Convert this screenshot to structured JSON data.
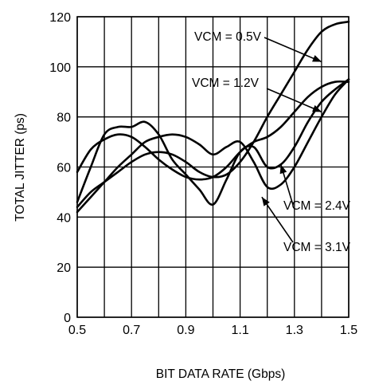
{
  "chart_data": {
    "type": "line",
    "title": "",
    "xlabel": "BIT DATA RATE (Gbps)",
    "ylabel": "TOTAL JITTER (ps)",
    "xlim": [
      0.5,
      1.5
    ],
    "ylim": [
      0,
      120
    ],
    "x_ticks": [
      0.5,
      0.7,
      0.9,
      1.1,
      1.3,
      1.5
    ],
    "x_tick_labels": [
      "0.5",
      "0.7",
      "0.9",
      "1.1",
      "1.3",
      "1.5"
    ],
    "y_ticks": [
      0,
      20,
      40,
      60,
      80,
      100,
      120
    ],
    "y_tick_labels": [
      "0",
      "20",
      "40",
      "60",
      "80",
      "100",
      "120"
    ],
    "x_grid": [
      0.5,
      0.6,
      0.7,
      0.8,
      0.9,
      1.0,
      1.1,
      1.2,
      1.3,
      1.4,
      1.5
    ],
    "y_grid": [
      0,
      20,
      40,
      60,
      80,
      100,
      120
    ],
    "grid": true,
    "series": [
      {
        "name": "VCM = 0.5V",
        "x": [
          0.5,
          0.55,
          0.6,
          0.65,
          0.7,
          0.75,
          0.8,
          0.85,
          0.9,
          0.95,
          1.0,
          1.05,
          1.1,
          1.15,
          1.2,
          1.25,
          1.3,
          1.35,
          1.4,
          1.45,
          1.5
        ],
        "y": [
          44,
          50,
          54,
          58,
          62,
          65,
          66,
          65,
          62,
          58,
          56,
          57,
          62,
          70,
          80,
          89,
          98,
          107,
          114,
          117,
          118
        ]
      },
      {
        "name": "VCM = 1.2V",
        "x": [
          0.5,
          0.55,
          0.6,
          0.65,
          0.7,
          0.75,
          0.8,
          0.85,
          0.9,
          0.95,
          1.0,
          1.05,
          1.1,
          1.15,
          1.2,
          1.25,
          1.3,
          1.35,
          1.4,
          1.45,
          1.5
        ],
        "y": [
          58,
          67,
          71,
          73,
          72,
          68,
          63,
          59,
          56,
          55,
          56,
          60,
          66,
          70,
          72,
          76,
          82,
          88,
          92,
          94,
          94
        ]
      },
      {
        "name": "VCM = 2.4V",
        "x": [
          0.5,
          0.55,
          0.6,
          0.65,
          0.7,
          0.75,
          0.8,
          0.85,
          0.9,
          0.95,
          1.0,
          1.05,
          1.1,
          1.15,
          1.2,
          1.25,
          1.3,
          1.35,
          1.4,
          1.45,
          1.5
        ],
        "y": [
          46,
          60,
          73,
          76,
          76,
          78,
          73,
          63,
          57,
          51,
          45,
          55,
          66,
          68,
          60,
          61,
          68,
          78,
          86,
          91,
          95
        ]
      },
      {
        "name": "VCM = 3.1V",
        "x": [
          0.5,
          0.55,
          0.6,
          0.65,
          0.7,
          0.75,
          0.8,
          0.85,
          0.9,
          0.95,
          1.0,
          1.05,
          1.1,
          1.15,
          1.2,
          1.25,
          1.3,
          1.35,
          1.4,
          1.45,
          1.5
        ],
        "y": [
          42,
          48,
          54,
          60,
          65,
          70,
          72,
          73,
          72,
          69,
          65,
          68,
          70,
          62,
          52,
          53,
          60,
          70,
          80,
          89,
          95
        ]
      }
    ],
    "annotations": [
      {
        "text": "VCM = 0.5V",
        "series": "VCM = 0.5V",
        "arrow_to": [
          1.4,
          102
        ]
      },
      {
        "text": "VCM = 1.2V",
        "series": "VCM = 1.2V",
        "arrow_to": [
          1.4,
          82
        ]
      },
      {
        "text": "VCM = 2.4V",
        "series": "VCM = 2.4V",
        "arrow_to": [
          1.25,
          61
        ]
      },
      {
        "text": "VCM = 3.1V",
        "series": "VCM = 3.1V",
        "arrow_to": [
          1.18,
          48
        ]
      }
    ]
  }
}
